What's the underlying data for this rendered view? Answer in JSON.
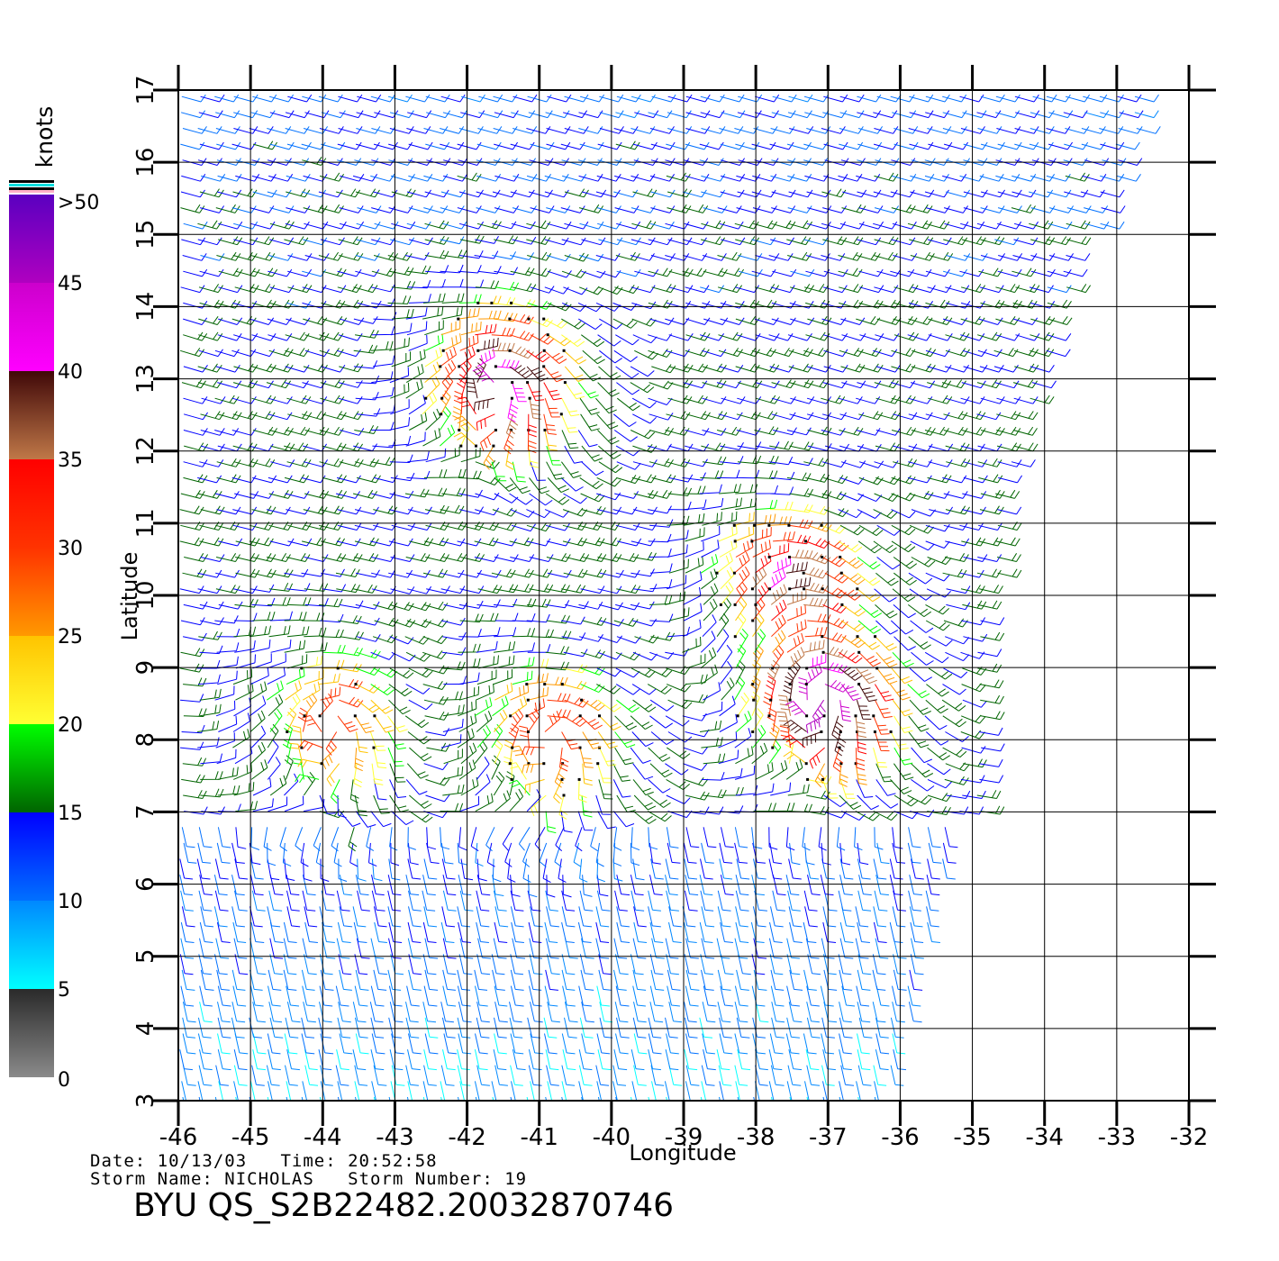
{
  "chart_data": {
    "type": "wind-barb",
    "xlabel": "Longitude",
    "ylabel": "Latitude",
    "xlim": [
      -46,
      -32
    ],
    "ylim": [
      3,
      17
    ],
    "xticks": [
      -46,
      -45,
      -44,
      -43,
      -42,
      -41,
      -40,
      -39,
      -38,
      -37,
      -36,
      -35,
      -34,
      -33,
      -32
    ],
    "yticks": [
      3,
      4,
      5,
      6,
      7,
      8,
      9,
      10,
      11,
      12,
      13,
      14,
      15,
      16,
      17
    ],
    "grid": true,
    "swath_lon_range": [
      -46,
      -32.5
    ],
    "wind_centers": [
      {
        "lon": -41.6,
        "lat": 13.0,
        "max_knots": 42
      },
      {
        "lon": -37.6,
        "lat": 10.2,
        "max_knots": 40
      },
      {
        "lon": -37.1,
        "lat": 8.6,
        "max_knots": 45
      },
      {
        "lon": -43.9,
        "lat": 8.3,
        "max_knots": 30
      },
      {
        "lon": -40.9,
        "lat": 8.1,
        "max_knots": 32
      }
    ],
    "colorbar": {
      "unit": "knots",
      "labels": [
        "0",
        "5",
        "10",
        "15",
        "20",
        "25",
        "30",
        "35",
        "40",
        "45",
        ">50"
      ],
      "bands": [
        {
          "from": 0,
          "to": 5,
          "colors": [
            "#8a8a8a",
            "#2a2a2a"
          ]
        },
        {
          "from": 5,
          "to": 10,
          "colors": [
            "#00ffff",
            "#0088ff"
          ]
        },
        {
          "from": 10,
          "to": 15,
          "colors": [
            "#0070ff",
            "#0000ff"
          ]
        },
        {
          "from": 15,
          "to": 20,
          "colors": [
            "#006400",
            "#00ff00"
          ]
        },
        {
          "from": 20,
          "to": 25,
          "colors": [
            "#ffff33",
            "#ffc400"
          ]
        },
        {
          "from": 25,
          "to": 30,
          "colors": [
            "#ff9900",
            "#ff3300"
          ]
        },
        {
          "from": 30,
          "to": 35,
          "colors": [
            "#ff3300",
            "#ff0000"
          ]
        },
        {
          "from": 35,
          "to": 40,
          "colors": [
            "#c07848",
            "#400808"
          ]
        },
        {
          "from": 40,
          "to": 45,
          "colors": [
            "#ff00ff",
            "#cc00cc"
          ]
        },
        {
          "from": 45,
          "to": 50,
          "colors": [
            "#b000c0",
            "#5a00c0"
          ]
        }
      ]
    }
  },
  "footer": {
    "date_line": "Date: 10/13/03   Time: 20:52:58",
    "storm_line": "Storm Name: NICHOLAS   Storm Number: 19",
    "title": "BYU QS_S2B22482.20032870746"
  }
}
